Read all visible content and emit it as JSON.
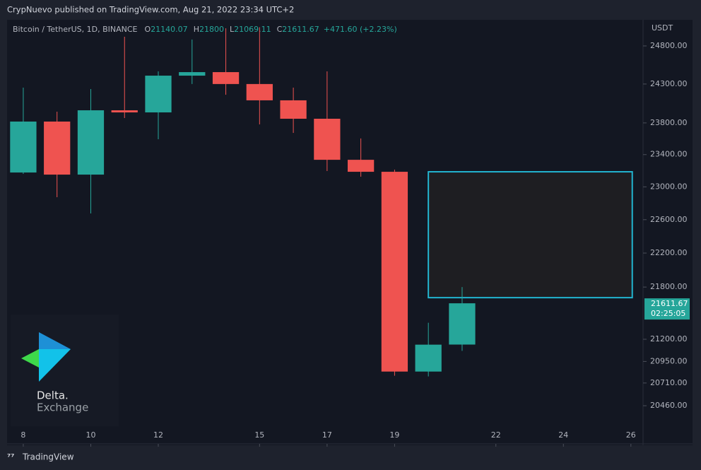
{
  "header": {
    "text": "CrypNuevo published on TradingView.com, Aug 21, 2022 23:34 UTC+2"
  },
  "chart_data": {
    "type": "candlestick",
    "symbol": "Bitcoin / TetherUS, 1D, BINANCE",
    "ohlc_labels": [
      "O",
      "H",
      "L",
      "C"
    ],
    "change_label": "+471.60 (+2.23%)",
    "y_unit": "USDT",
    "x": [
      8,
      9,
      10,
      11,
      12,
      13,
      14,
      15,
      16,
      17,
      18,
      19,
      20,
      21
    ],
    "open": [
      23177,
      23817,
      23151,
      23961,
      23934,
      24409,
      24455,
      24300,
      24089,
      23853,
      23335,
      23186,
      20837,
      21140.07
    ],
    "high": [
      24253,
      23943,
      24235,
      24922,
      24465,
      24885,
      25035,
      25050,
      24253,
      24465,
      23603,
      23213,
      21388,
      21800.0
    ],
    "low": [
      23160,
      22873,
      22675,
      23862,
      23593,
      24300,
      24161,
      23781,
      23673,
      23195,
      23125,
      20791,
      20783,
      21069.11
    ],
    "close": [
      23817,
      23151,
      23961,
      23934,
      24409,
      24455,
      24300,
      24089,
      23853,
      23335,
      23186,
      20837,
      21139,
      21611.67
    ],
    "up_color": "#26a69a",
    "down_color": "#ef5350",
    "log_scale": true,
    "xlim": [
      7.52,
      26.36
    ],
    "xticks": [
      8,
      10,
      12,
      15,
      17,
      19,
      22,
      24,
      26
    ],
    "ylim": [
      20047,
      25149
    ],
    "yticks": [
      {
        "value": 24800,
        "label": "24800.00"
      },
      {
        "value": 24300,
        "label": "24300.00"
      },
      {
        "value": 23800,
        "label": "23800.00"
      },
      {
        "value": 23400,
        "label": "23400.00"
      },
      {
        "value": 23000,
        "label": "23000.00"
      },
      {
        "value": 22600,
        "label": "22600.00"
      },
      {
        "value": 22200,
        "label": "22200.00"
      },
      {
        "value": 21800,
        "label": "21800.00"
      },
      {
        "value": 21200,
        "label": "21200.00"
      },
      {
        "value": 20950,
        "label": "20950.00"
      },
      {
        "value": 20710,
        "label": "20710.00"
      },
      {
        "value": 20460,
        "label": "20460.00"
      }
    ],
    "countdown": "02:25:05",
    "zone": {
      "x": [
        20,
        26.04
      ],
      "y": [
        21677,
        23186
      ],
      "color": "#22b5d1"
    }
  },
  "logo": {
    "line1": "Delta.",
    "line2": "Exchange"
  },
  "footer": {
    "brand": "TradingView"
  }
}
